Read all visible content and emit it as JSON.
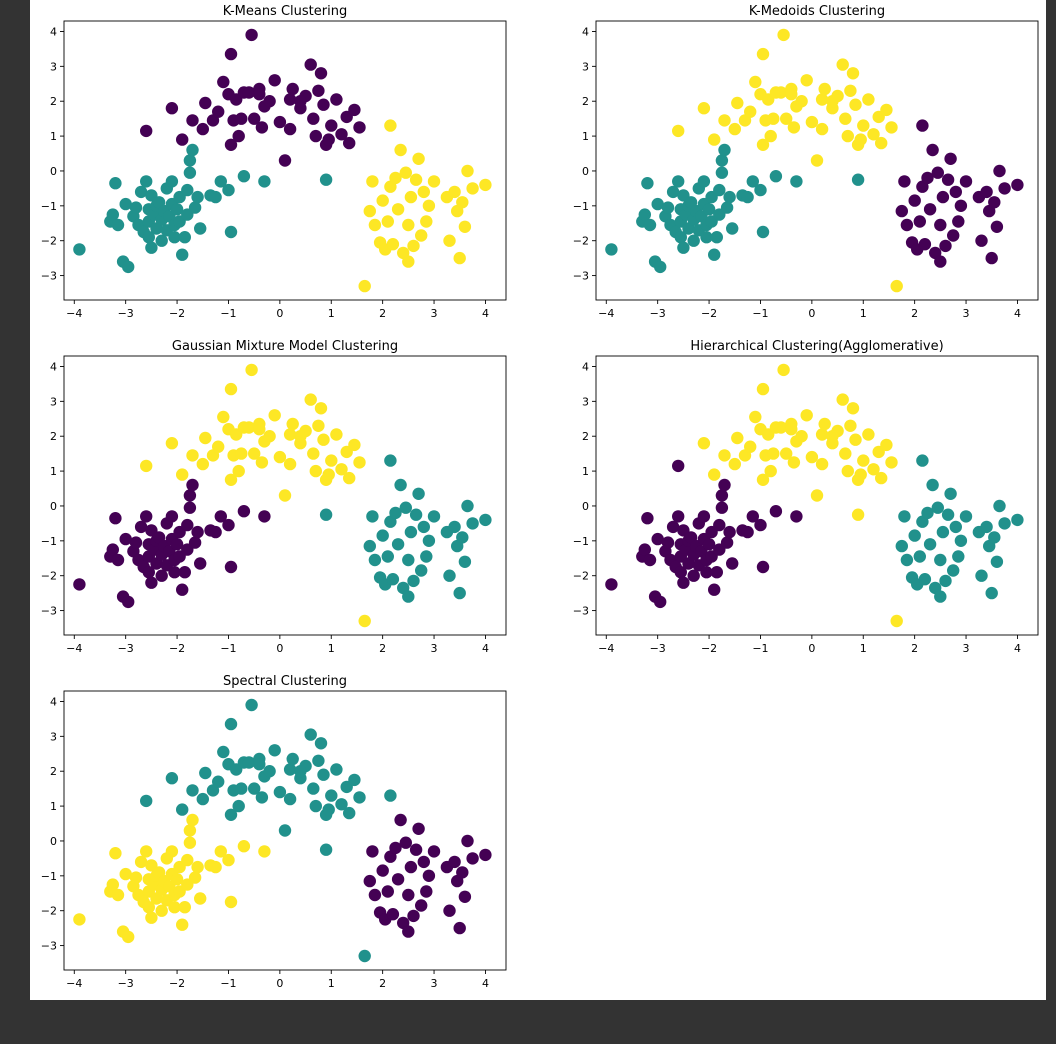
{
  "colors": {
    "purple": "#440154",
    "teal": "#21918c",
    "yellow": "#fde725",
    "background": "#333333",
    "figure": "#ffffff"
  },
  "points": [
    [
      -3.9,
      -2.25
    ],
    [
      -3.3,
      -1.45
    ],
    [
      -3.25,
      -1.25
    ],
    [
      -3.2,
      -0.35
    ],
    [
      -3.15,
      -1.55
    ],
    [
      -3.05,
      -2.6
    ],
    [
      -2.95,
      -2.75
    ],
    [
      -3.0,
      -0.95
    ],
    [
      -2.85,
      -1.3
    ],
    [
      -2.8,
      -1.05
    ],
    [
      -2.75,
      -1.55
    ],
    [
      -2.7,
      -0.6
    ],
    [
      -2.65,
      -1.75
    ],
    [
      -2.6,
      -0.3
    ],
    [
      -2.55,
      -1.45
    ],
    [
      -2.55,
      -1.1
    ],
    [
      -2.55,
      -1.9
    ],
    [
      -2.5,
      -0.7
    ],
    [
      -2.5,
      -2.2
    ],
    [
      -2.45,
      -1.25
    ],
    [
      -2.4,
      -1.0
    ],
    [
      -2.4,
      -1.65
    ],
    [
      -2.35,
      -0.9
    ],
    [
      -2.3,
      -1.4
    ],
    [
      -2.3,
      -2.0
    ],
    [
      -2.25,
      -1.15
    ],
    [
      -2.2,
      -0.5
    ],
    [
      -2.2,
      -1.7
    ],
    [
      -2.15,
      -1.3
    ],
    [
      -2.1,
      -0.3
    ],
    [
      -2.1,
      -0.95
    ],
    [
      -2.05,
      -1.55
    ],
    [
      -2.05,
      -1.9
    ],
    [
      -2.0,
      -1.1
    ],
    [
      -1.95,
      -0.75
    ],
    [
      -1.95,
      -1.45
    ],
    [
      -1.9,
      -2.4
    ],
    [
      -1.85,
      -1.9
    ],
    [
      -1.8,
      -0.55
    ],
    [
      -1.8,
      -1.25
    ],
    [
      -1.75,
      0.3
    ],
    [
      -1.75,
      -0.05
    ],
    [
      -1.7,
      0.6
    ],
    [
      -1.65,
      -1.05
    ],
    [
      -1.6,
      -0.75
    ],
    [
      -1.55,
      -1.65
    ],
    [
      -1.35,
      -0.7
    ],
    [
      -1.25,
      -0.75
    ],
    [
      -1.15,
      -0.3
    ],
    [
      -1.0,
      -0.55
    ],
    [
      -0.95,
      -1.75
    ],
    [
      -0.7,
      -0.15
    ],
    [
      -0.3,
      -0.3
    ],
    [
      -2.6,
      1.15
    ],
    [
      -2.1,
      1.8
    ],
    [
      -1.7,
      1.45
    ],
    [
      -1.5,
      1.2
    ],
    [
      -1.45,
      1.95
    ],
    [
      -1.3,
      1.45
    ],
    [
      -1.2,
      1.7
    ],
    [
      -1.1,
      2.55
    ],
    [
      -1.0,
      2.2
    ],
    [
      -0.95,
      0.75
    ],
    [
      -0.9,
      1.45
    ],
    [
      -0.85,
      2.05
    ],
    [
      -0.8,
      1.0
    ],
    [
      -0.75,
      1.5
    ],
    [
      -0.7,
      2.25
    ],
    [
      -0.6,
      2.25
    ],
    [
      -0.55,
      3.9
    ],
    [
      -0.5,
      1.5
    ],
    [
      -0.4,
      2.35
    ],
    [
      -0.35,
      1.25
    ],
    [
      -0.3,
      1.85
    ],
    [
      -0.2,
      2.0
    ],
    [
      -0.1,
      2.6
    ],
    [
      0.0,
      1.4
    ],
    [
      0.1,
      0.3
    ],
    [
      0.2,
      2.05
    ],
    [
      0.25,
      2.35
    ],
    [
      0.4,
      1.8
    ],
    [
      0.5,
      2.15
    ],
    [
      0.6,
      3.05
    ],
    [
      0.65,
      1.5
    ],
    [
      0.7,
      1.0
    ],
    [
      0.75,
      2.3
    ],
    [
      0.8,
      2.8
    ],
    [
      0.85,
      1.9
    ],
    [
      0.9,
      0.75
    ],
    [
      1.0,
      1.3
    ],
    [
      1.1,
      2.05
    ],
    [
      1.2,
      1.05
    ],
    [
      1.3,
      1.55
    ],
    [
      1.35,
      0.8
    ],
    [
      1.45,
      1.75
    ],
    [
      1.55,
      1.25
    ],
    [
      -0.95,
      3.35
    ],
    [
      -1.9,
      0.9
    ],
    [
      0.4,
      2.0
    ],
    [
      0.2,
      1.2
    ],
    [
      -0.4,
      2.2
    ],
    [
      0.95,
      0.9
    ],
    [
      1.65,
      -3.3
    ],
    [
      1.75,
      -1.15
    ],
    [
      1.8,
      -0.3
    ],
    [
      1.85,
      -1.55
    ],
    [
      1.95,
      -2.05
    ],
    [
      2.0,
      -0.85
    ],
    [
      2.05,
      -2.25
    ],
    [
      2.1,
      -1.45
    ],
    [
      2.15,
      -0.45
    ],
    [
      2.2,
      -2.1
    ],
    [
      2.25,
      -0.2
    ],
    [
      2.3,
      -1.1
    ],
    [
      2.35,
      0.6
    ],
    [
      2.4,
      -2.35
    ],
    [
      2.45,
      -0.05
    ],
    [
      2.5,
      -2.6
    ],
    [
      2.5,
      -1.55
    ],
    [
      2.55,
      -0.75
    ],
    [
      2.6,
      -2.15
    ],
    [
      2.65,
      -0.25
    ],
    [
      2.7,
      0.35
    ],
    [
      2.75,
      -1.85
    ],
    [
      2.8,
      -0.6
    ],
    [
      2.85,
      -1.45
    ],
    [
      2.9,
      -1.0
    ],
    [
      3.0,
      -0.3
    ],
    [
      3.25,
      -0.75
    ],
    [
      3.3,
      -2.0
    ],
    [
      3.4,
      -0.6
    ],
    [
      3.45,
      -1.15
    ],
    [
      3.5,
      -2.5
    ],
    [
      3.55,
      -0.9
    ],
    [
      3.6,
      -1.6
    ],
    [
      3.65,
      0.0
    ],
    [
      3.75,
      -0.5
    ],
    [
      4.0,
      -0.4
    ],
    [
      2.15,
      1.3
    ],
    [
      0.9,
      -0.25
    ]
  ],
  "labels": {
    "kmeans": "TTTTTTTTTTTTTTTTTTTTTTTTTTTTTTTTTTTTTTTTTTTTTTTTTTTTTPPPPPPPPPPPPPPPPPPPPPPPPPPPPPPPPPPPPPPPPPPPPPPPPPYYYYYYYYYYYYYYYYYYYYYYYYYYYYYYYYYYYYY",
    "kmedoids": "TTTTTTTTTTTTTTTTTTTTTTTTTTTTTTTTTTTTTTTTTTTTTTTTTTTTTYYYYYYYYYYYYYYYYYYYYYYYYYYYYYYYYYYYYYYYYYYYYYYYYYYPPPPPPPPPPPPPPPPPPPPPPPPPPPPPPPPPPPP",
    "gmm": "PPPPPPPPPPPPPPPPPPPPPPPPPPPPPPPPPPPPPPPPPPPPPPPPPPPPPYYYYYYYYYYYYYYYYYYYYYYYYYYYYYYYYYYYYYYYYYYYYYYYYYYTTTTTTTTTTTTTTTTTTTTTTTTTTTTTTTTTTTTT",
    "hier": "PPPPPPPPPPPPPPPPPPPPPPPPPPPPPPPPPPPPPPPPPPPPPPPPPPPPPPYYYYYYYYYYYYYYYYYYYYYYYYYYYYYYYYYYYYYYYYYYYYYYYYYTTTTTTTTTTTTTTTTTTTTTTTTTTTTTTTTTTTTY",
    "spectral": "YYYYYYYYYYYYYYYYYYYYYYYYYYYYYYYYYYYYYYYYYYYYYYYYYYYYYTTTTTTTTTTTTTTTTTTTTTTTTTTTTTTTTTTTTTTTTTTTTTTTTTTPPPPPPPPPPPPPPPPPPPPPPPPPPPPPPPPPPPT"
  },
  "chart_data": [
    {
      "type": "scatter",
      "id": "kmeans",
      "title": "K-Means Clustering",
      "xlim": [
        -4.2,
        4.4
      ],
      "ylim": [
        -3.7,
        4.3
      ],
      "xticks": [
        -4,
        -3,
        -2,
        -1,
        0,
        1,
        2,
        3,
        4
      ],
      "yticks": [
        -3,
        -2,
        -1,
        0,
        1,
        2,
        3,
        4
      ],
      "colormap": "viridis",
      "n_clusters": 3,
      "grid": false
    },
    {
      "type": "scatter",
      "id": "kmedoids",
      "title": "K-Medoids Clustering",
      "xlim": [
        -4.2,
        4.4
      ],
      "ylim": [
        -3.7,
        4.3
      ],
      "xticks": [
        -4,
        -3,
        -2,
        -1,
        0,
        1,
        2,
        3,
        4
      ],
      "yticks": [
        -3,
        -2,
        -1,
        0,
        1,
        2,
        3,
        4
      ],
      "colormap": "viridis",
      "n_clusters": 3,
      "grid": false
    },
    {
      "type": "scatter",
      "id": "gmm",
      "title": "Gaussian Mixture Model Clustering",
      "xlim": [
        -4.2,
        4.4
      ],
      "ylim": [
        -3.7,
        4.3
      ],
      "xticks": [
        -4,
        -3,
        -2,
        -1,
        0,
        1,
        2,
        3,
        4
      ],
      "yticks": [
        -3,
        -2,
        -1,
        0,
        1,
        2,
        3,
        4
      ],
      "colormap": "viridis",
      "n_clusters": 3,
      "grid": false
    },
    {
      "type": "scatter",
      "id": "hier",
      "title": "Hierarchical Clustering(Agglomerative)",
      "xlim": [
        -4.2,
        4.4
      ],
      "ylim": [
        -3.7,
        4.3
      ],
      "xticks": [
        -4,
        -3,
        -2,
        -1,
        0,
        1,
        2,
        3,
        4
      ],
      "yticks": [
        -3,
        -2,
        -1,
        0,
        1,
        2,
        3,
        4
      ],
      "colormap": "viridis",
      "n_clusters": 3,
      "grid": false
    },
    {
      "type": "scatter",
      "id": "spectral",
      "title": "Spectral Clustering",
      "xlim": [
        -4.2,
        4.4
      ],
      "ylim": [
        -3.7,
        4.3
      ],
      "xticks": [
        -4,
        -3,
        -2,
        -1,
        0,
        1,
        2,
        3,
        4
      ],
      "yticks": [
        -3,
        -2,
        -1,
        0,
        1,
        2,
        3,
        4
      ],
      "colormap": "viridis",
      "n_clusters": 3,
      "grid": false
    }
  ]
}
